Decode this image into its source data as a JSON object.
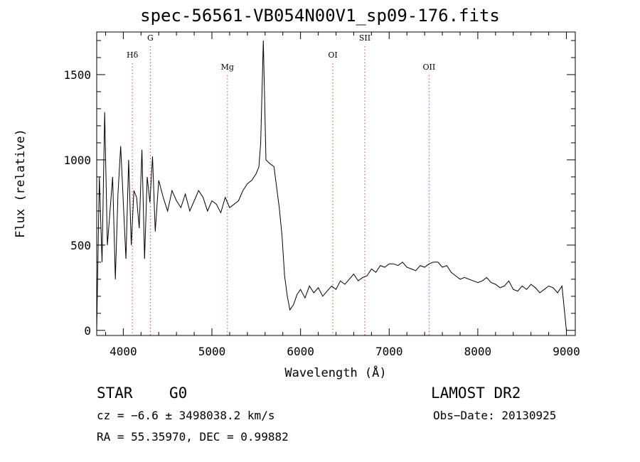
{
  "chart_data": {
    "type": "line",
    "title": "spec-56561-VB054N00V1_sp09-176.fits",
    "xlabel": "Wavelength (Å)",
    "ylabel": "Flux (relative)",
    "xlim": [
      3700,
      9100
    ],
    "ylim": [
      -30,
      1750
    ],
    "x_ticks": [
      4000,
      5000,
      6000,
      7000,
      8000,
      9000
    ],
    "x_tick_labels": [
      "4000",
      "5000",
      "6000",
      "7000",
      "8000",
      "9000"
    ],
    "y_ticks": [
      0,
      500,
      1000,
      1500
    ],
    "y_tick_labels": [
      "0",
      "500",
      "1000",
      "1500"
    ],
    "grid": false,
    "line_color": "#000000",
    "marker_color": "#d04040",
    "lines": [
      {
        "label": "Hδ",
        "wavelength": 4102,
        "label_y": 1600
      },
      {
        "label": "G",
        "wavelength": 4305,
        "label_y": 1700
      },
      {
        "label": "Mg",
        "wavelength": 5175,
        "label_y": 1530
      },
      {
        "label": "OI",
        "wavelength": 6364,
        "label_y": 1600
      },
      {
        "label": "SII",
        "wavelength": 6725,
        "label_y": 1700
      },
      {
        "label": "OII",
        "wavelength": 7450,
        "label_y": 1530
      }
    ],
    "series": [
      {
        "x": [
          3700,
          3730,
          3760,
          3790,
          3820,
          3850,
          3880,
          3910,
          3940,
          3970,
          4000,
          4030,
          4060,
          4090,
          4120,
          4150,
          4180,
          4210,
          4240,
          4270,
          4300,
          4330,
          4360,
          4400,
          4450,
          4500,
          4550,
          4600,
          4650,
          4700,
          4750,
          4800,
          4850,
          4900,
          4950,
          5000,
          5050,
          5100,
          5150,
          5200,
          5250,
          5300,
          5350,
          5400,
          5450,
          5500,
          5530,
          5550,
          5580,
          5610,
          5650,
          5700,
          5730,
          5760,
          5790,
          5820,
          5850,
          5880,
          5920,
          5960,
          6000,
          6050,
          6100,
          6150,
          6200,
          6250,
          6300,
          6350,
          6400,
          6450,
          6500,
          6550,
          6600,
          6650,
          6700,
          6750,
          6800,
          6850,
          6900,
          6950,
          7000,
          7050,
          7100,
          7150,
          7200,
          7250,
          7300,
          7350,
          7400,
          7450,
          7500,
          7550,
          7600,
          7650,
          7700,
          7750,
          7800,
          7850,
          7900,
          7950,
          8000,
          8050,
          8100,
          8150,
          8200,
          8250,
          8300,
          8350,
          8400,
          8450,
          8500,
          8550,
          8600,
          8650,
          8700,
          8750,
          8800,
          8850,
          8900,
          8950,
          9000
        ],
        "y": [
          0,
          900,
          400,
          1280,
          500,
          700,
          900,
          300,
          800,
          1080,
          750,
          420,
          1000,
          500,
          820,
          780,
          600,
          1060,
          420,
          900,
          750,
          1020,
          580,
          880,
          780,
          700,
          820,
          760,
          720,
          800,
          700,
          760,
          820,
          780,
          700,
          760,
          740,
          690,
          780,
          720,
          740,
          760,
          820,
          860,
          880,
          920,
          960,
          1100,
          1700,
          1000,
          980,
          960,
          840,
          720,
          560,
          320,
          200,
          120,
          150,
          210,
          240,
          190,
          260,
          220,
          250,
          200,
          230,
          260,
          240,
          290,
          270,
          300,
          330,
          290,
          310,
          320,
          360,
          340,
          380,
          370,
          390,
          390,
          380,
          400,
          370,
          360,
          350,
          380,
          370,
          390,
          400,
          400,
          370,
          380,
          340,
          320,
          300,
          310,
          300,
          290,
          280,
          290,
          310,
          280,
          270,
          250,
          260,
          290,
          240,
          230,
          260,
          240,
          270,
          250,
          220,
          240,
          260,
          250,
          220,
          260,
          0
        ]
      }
    ]
  },
  "footer": {
    "object_class": "STAR",
    "subclass": "G0",
    "survey": "LAMOST DR2",
    "cz": "cz = −6.6 ± 3498038.2 km/s",
    "obs_date": "Obs−Date: 20130925",
    "coords": "RA =  55.35970, DEC =   0.99882"
  }
}
